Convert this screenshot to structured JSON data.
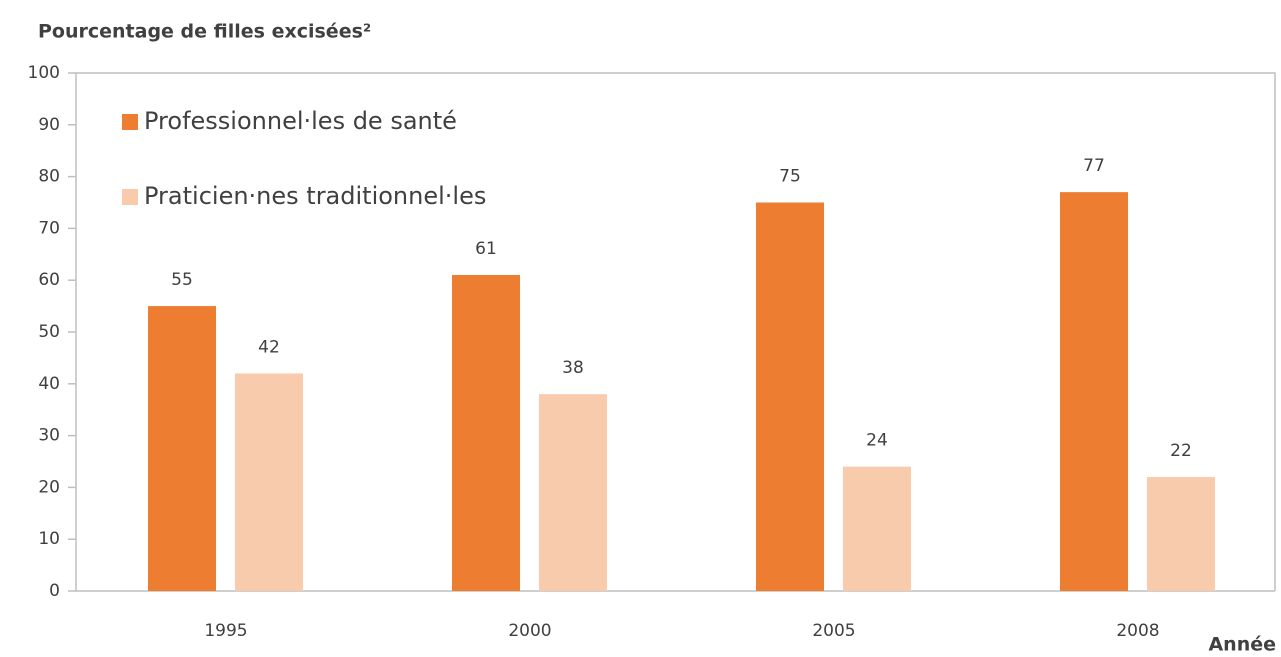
{
  "chart_data": {
    "type": "bar",
    "title": "Pourcentage de filles excisées²",
    "x_label": "Année",
    "categories": [
      "1995",
      "2000",
      "2005",
      "2008"
    ],
    "series": [
      {
        "name": "Professionnel·les de santé",
        "color": "#ed7d31",
        "values": [
          55,
          61,
          75,
          77
        ]
      },
      {
        "name": "Praticien·nes traditionnel·les",
        "color": "#f8cbad",
        "values": [
          42,
          38,
          24,
          22
        ]
      }
    ],
    "ylim": [
      0,
      100
    ],
    "yticks": [
      0,
      10,
      20,
      30,
      40,
      50,
      60,
      70,
      80,
      90,
      100
    ],
    "legend": "top-left",
    "grid": false
  }
}
